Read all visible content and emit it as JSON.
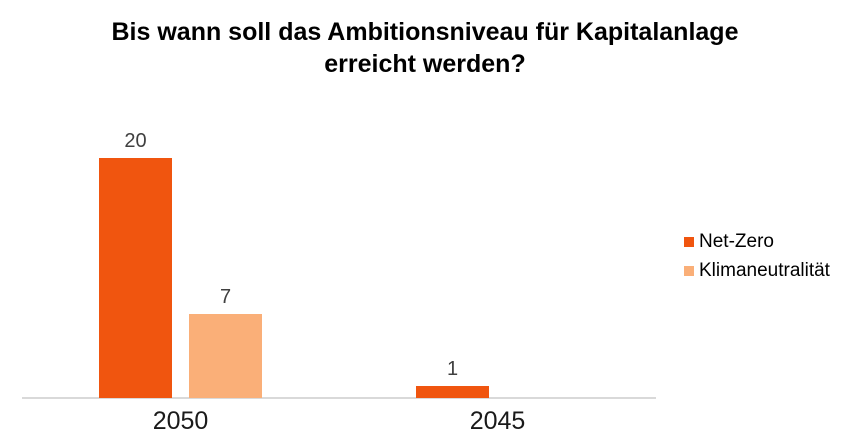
{
  "chart_data": {
    "type": "bar",
    "title": "Bis wann soll das Ambitionsniveau für Kapitalanlage erreicht werden?",
    "categories": [
      "2050",
      "2045"
    ],
    "series": [
      {
        "name": "Net-Zero",
        "color": "#F0550F",
        "values": [
          20,
          1
        ]
      },
      {
        "name": "Klimaneutralität",
        "color": "#FAAF78",
        "values": [
          7,
          null
        ]
      }
    ],
    "xlabel": "",
    "ylabel": "",
    "value_axis_visible": false,
    "grid": false,
    "legend_position": "right"
  },
  "colors": {
    "net_zero": "#F0550F",
    "klimaneutralitaet": "#FAAF78",
    "axis_line": "#D9D9D9",
    "title_text": "#000000",
    "value_label_text": "#404040",
    "category_label_text": "#1A1A1A",
    "legend_text": "#000000",
    "background": "#FFFFFF"
  }
}
